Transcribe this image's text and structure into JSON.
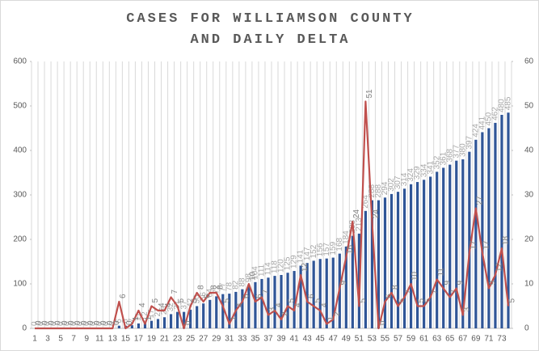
{
  "chart_data": {
    "type": "bar-line",
    "title": "CASES FOR WILLIAMSON COUNTY AND DAILY DELTA",
    "categories": [
      1,
      null,
      3,
      null,
      5,
      null,
      7,
      null,
      9,
      null,
      11,
      null,
      13,
      null,
      15,
      null,
      17,
      null,
      19,
      null,
      21,
      null,
      23,
      null,
      25,
      null,
      27,
      null,
      29,
      null,
      31,
      null,
      33,
      null,
      35,
      null,
      37,
      null,
      39,
      null,
      41,
      null,
      43,
      null,
      45,
      null,
      47,
      null,
      49,
      null,
      51,
      null,
      53,
      null,
      55,
      null,
      57,
      null,
      59,
      null,
      61,
      null,
      63,
      null,
      65,
      null,
      67,
      null,
      69,
      null,
      71,
      null,
      73,
      null
    ],
    "series": [
      {
        "type": "bar",
        "color": "#2f5597",
        "axis": "y",
        "values": [
          0,
          0,
          0,
          0,
          0,
          0,
          0,
          0,
          0,
          0,
          0,
          0,
          0,
          6,
          6,
          7,
          11,
          12,
          17,
          21,
          25,
          32,
          37,
          37,
          42,
          50,
          56,
          64,
          72,
          77,
          78,
          82,
          88,
          98,
          104,
          111,
          114,
          118,
          120,
          125,
          129,
          141,
          147,
          152,
          156,
          157,
          159,
          168,
          184,
          208,
          213,
          264,
          288,
          288,
          294,
          302,
          307,
          314,
          324,
          329,
          334,
          341,
          352,
          361,
          368,
          377,
          380,
          397,
          424,
          441,
          450,
          462,
          480,
          485
        ]
      },
      {
        "type": "line",
        "color": "#c0504d",
        "axis": "y2",
        "values": [
          0,
          0,
          0,
          0,
          0,
          0,
          0,
          0,
          0,
          0,
          0,
          0,
          0,
          6,
          0,
          1,
          4,
          1,
          5,
          4,
          4,
          7,
          5,
          0,
          5,
          8,
          6,
          8,
          8,
          5,
          1,
          4,
          6,
          10,
          6,
          7,
          3,
          4,
          2,
          5,
          4,
          12,
          6,
          5,
          4,
          1,
          2,
          9,
          16,
          24,
          5,
          51,
          24,
          0,
          6,
          8,
          5,
          7,
          10,
          5,
          5,
          7,
          11,
          9,
          7,
          9,
          3,
          17,
          27,
          17,
          9,
          12,
          18,
          5
        ]
      }
    ],
    "ylim": [
      0,
      600
    ],
    "yticks": [
      0,
      100,
      200,
      300,
      400,
      500,
      600
    ],
    "y2lim": [
      0,
      60
    ],
    "y2ticks": [
      0,
      10,
      20,
      30,
      40,
      50,
      60
    ]
  }
}
